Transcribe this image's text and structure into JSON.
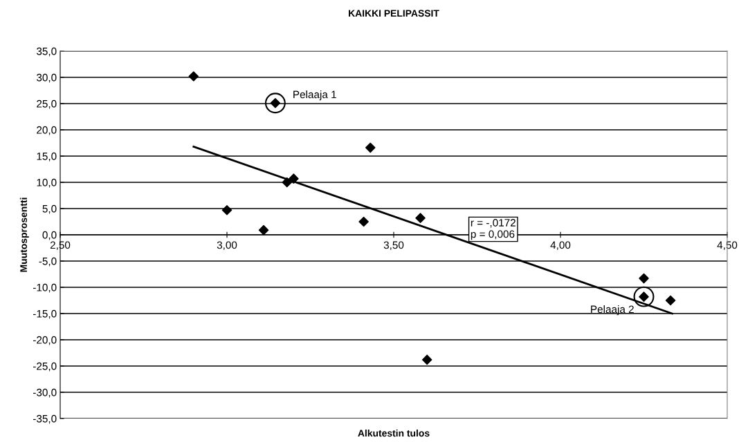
{
  "chart_data": {
    "type": "scatter",
    "title": "KAIKKI PELIPASSIT",
    "xlabel": "Alkutestin tulos",
    "ylabel": "Muutosprosentti",
    "series": [
      {
        "color": "#000000",
        "marker": "diamond",
        "x": [
          2.9,
          3.145,
          3.43,
          3.18,
          3.2,
          3.0,
          3.11,
          3.41,
          3.58,
          3.6,
          4.25,
          4.25,
          4.33
        ],
        "values": [
          30.2,
          25.1,
          16.6,
          10.0,
          10.7,
          4.7,
          0.9,
          2.5,
          3.2,
          -23.8,
          -8.3,
          -11.8,
          -12.5
        ]
      },
      {
        "type": "line",
        "color": "#000000",
        "marker": "none",
        "line_style": "solid",
        "x": [
          2.9,
          4.335
        ],
        "values": [
          16.8,
          -15.0
        ]
      }
    ],
    "annotations": [
      {
        "text": "Pelaaja 1",
        "x": 3.145,
        "y": 25.1
      },
      {
        "text": "Pelaaja 2",
        "x": 4.25,
        "y": -11.8
      },
      "r = -,0172\np = 0,006"
    ],
    "xlim": [
      2.5,
      4.5
    ],
    "ylim": [
      -35,
      35
    ],
    "xticks": [
      {
        "value": 2.5,
        "label": "2,50"
      },
      {
        "value": 3.0,
        "label": "3,00"
      },
      {
        "value": 3.5,
        "label": "3,50"
      },
      {
        "value": 4.0,
        "label": "4,00"
      },
      {
        "value": 4.5,
        "label": "4,50"
      }
    ],
    "yticks": [
      {
        "value": -35,
        "label": "-35,0"
      },
      {
        "value": -30,
        "label": "-30,0"
      },
      {
        "value": -25,
        "label": "-25,0"
      },
      {
        "value": -20,
        "label": "-20,0"
      },
      {
        "value": -15,
        "label": "-15,0"
      },
      {
        "value": -10,
        "label": "-10,0"
      },
      {
        "value": -5,
        "label": "-5,0"
      },
      {
        "value": 0,
        "label": "0,0"
      },
      {
        "value": 5,
        "label": "5,0"
      },
      {
        "value": 10,
        "label": "10,0"
      },
      {
        "value": 15,
        "label": "15,0"
      },
      {
        "value": 20,
        "label": "20,0"
      },
      {
        "value": 25,
        "label": "25,0"
      },
      {
        "value": 30,
        "label": "30,0"
      },
      {
        "value": 35,
        "label": "35,0"
      }
    ],
    "grid": "y",
    "legend": false
  }
}
